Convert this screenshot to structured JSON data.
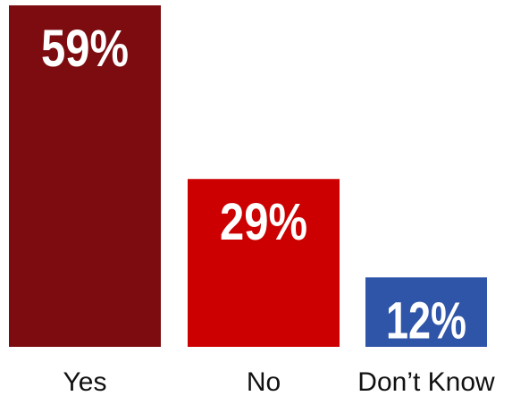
{
  "chart_data": {
    "type": "bar",
    "categories": [
      "Yes",
      "No",
      "Don’t Know"
    ],
    "values": [
      59,
      29,
      12
    ],
    "value_labels": [
      "59%",
      "29%",
      "12%"
    ],
    "colors": [
      "#7d0c10",
      "#cc0000",
      "#2f55a8"
    ],
    "title": "",
    "xlabel": "",
    "ylabel": "",
    "ylim": [
      0,
      59
    ],
    "grid": false
  }
}
